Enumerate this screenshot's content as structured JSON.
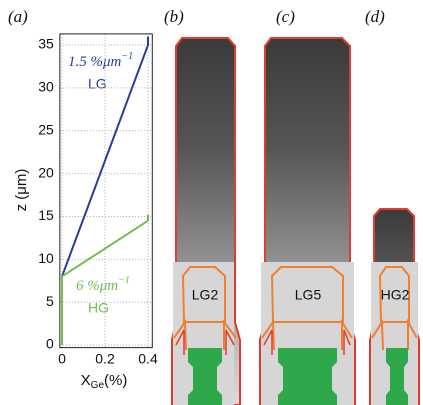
{
  "chart_data": {
    "type": "line",
    "panel_label": "(a)",
    "x_label": {
      "main": "X",
      "sub": "Ge",
      "unit": "(%)"
    },
    "y_label": "z (μm)",
    "xlim": [
      -0.01,
      0.42
    ],
    "xticks": [
      0,
      0.2,
      0.4
    ],
    "ylim": [
      -0.3,
      36.3
    ],
    "yticks": [
      0,
      5,
      10,
      15,
      20,
      25,
      30,
      35
    ],
    "grid": true,
    "series": [
      {
        "name": "LG",
        "color": "#2b3d9b",
        "x": [
          0,
          0.4,
          0.4
        ],
        "values": [
          8,
          35,
          36
        ]
      },
      {
        "name": "HG",
        "color": "#6cc24a",
        "x": [
          0,
          0,
          0.4,
          0.4
        ],
        "values": [
          0,
          8,
          14.5,
          15.2
        ]
      }
    ],
    "annotations": [
      {
        "text": "1.5 %μm",
        "sup": "−1"
      },
      {
        "text": "6 %μm",
        "sup": "−1"
      }
    ]
  },
  "panels": [
    {
      "label": "(b)",
      "name": "LG2"
    },
    {
      "label": "(c)",
      "name": "LG5"
    },
    {
      "label": "(d)",
      "name": "HG2"
    }
  ]
}
